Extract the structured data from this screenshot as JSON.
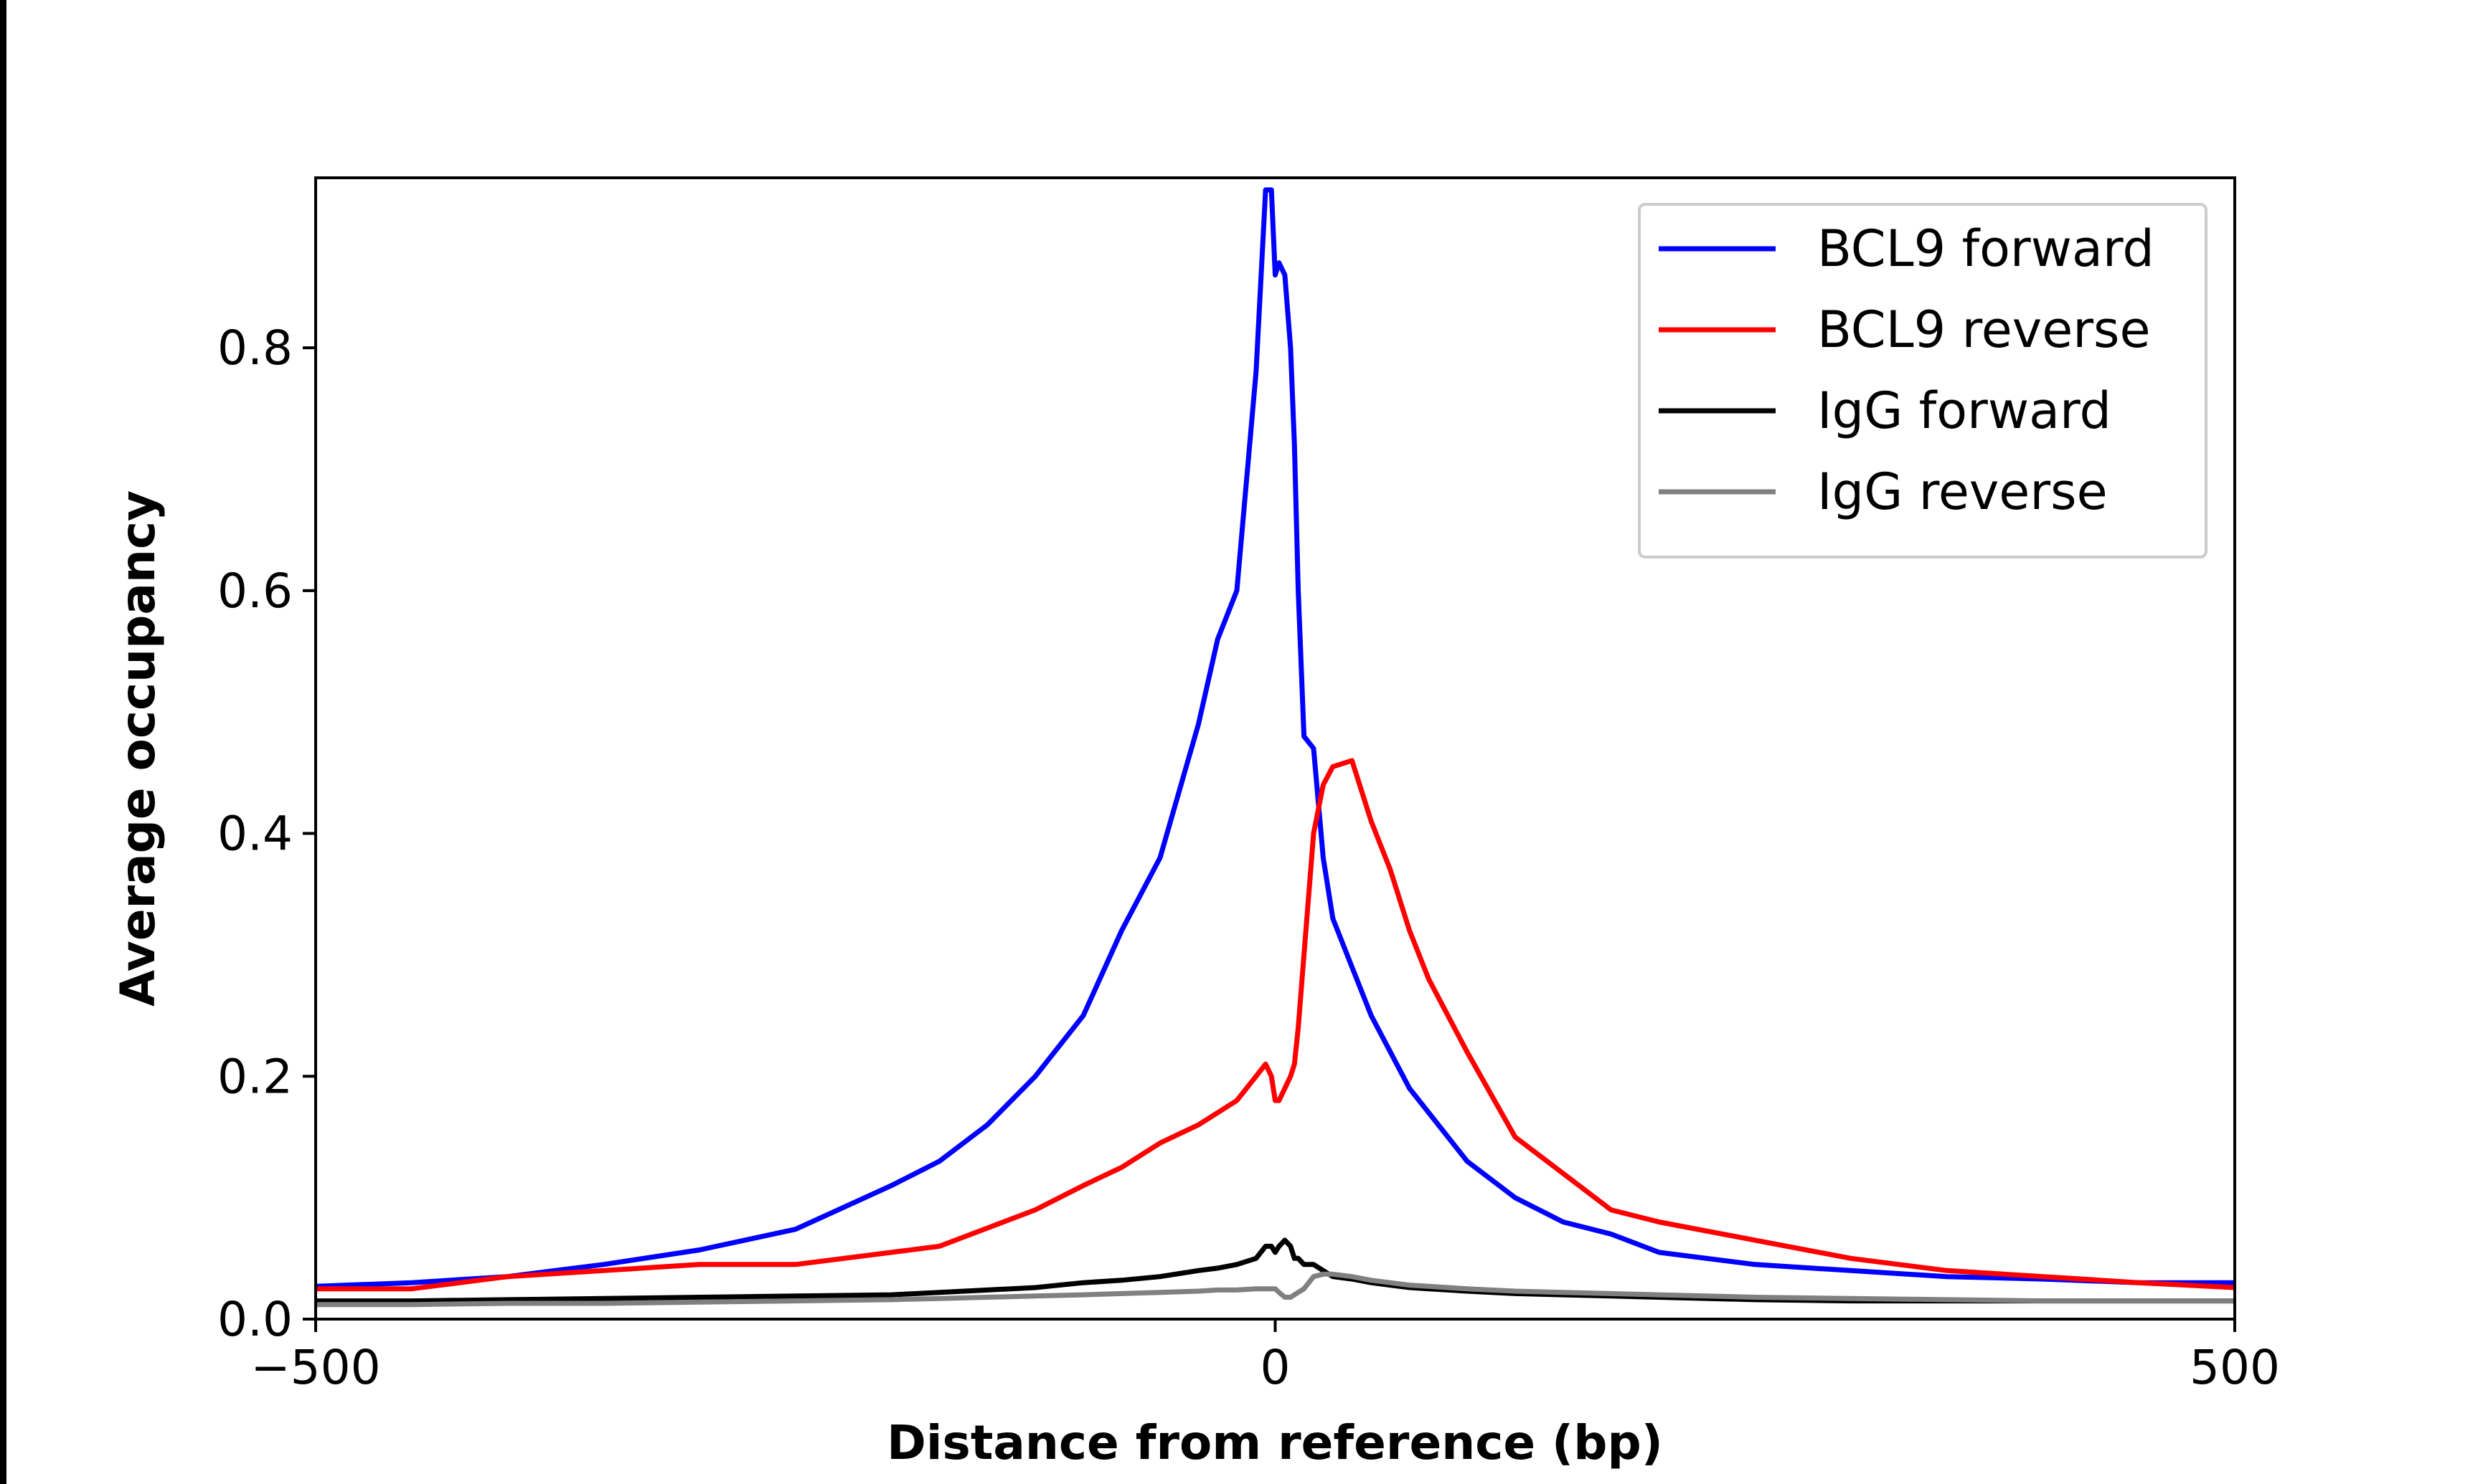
{
  "chart_data": {
    "type": "line",
    "xlabel": "Distance from reference (bp)",
    "ylabel": "Average occupancy",
    "x": [
      -500,
      -450,
      -400,
      -350,
      -300,
      -250,
      -200,
      -175,
      -150,
      -125,
      -100,
      -80,
      -60,
      -40,
      -30,
      -20,
      -10,
      -5,
      -2,
      0,
      2,
      5,
      8,
      10,
      12,
      15,
      20,
      25,
      30,
      40,
      50,
      60,
      70,
      80,
      100,
      125,
      150,
      175,
      200,
      250,
      300,
      350,
      400,
      450,
      500
    ],
    "series": [
      {
        "name": "BCL9 forward",
        "color": "#0000ff",
        "values": [
          0.027,
          0.03,
          0.035,
          0.045,
          0.057,
          0.074,
          0.11,
          0.13,
          0.16,
          0.2,
          0.25,
          0.32,
          0.38,
          0.49,
          0.56,
          0.6,
          0.78,
          0.93,
          0.93,
          0.86,
          0.87,
          0.86,
          0.8,
          0.72,
          0.6,
          0.48,
          0.47,
          0.38,
          0.33,
          0.29,
          0.25,
          0.22,
          0.19,
          0.17,
          0.13,
          0.1,
          0.08,
          0.07,
          0.055,
          0.045,
          0.04,
          0.035,
          0.033,
          0.03,
          0.03
        ]
      },
      {
        "name": "BCL9 reverse",
        "color": "#ff0000",
        "values": [
          0.025,
          0.025,
          0.035,
          0.04,
          0.045,
          0.045,
          0.055,
          0.06,
          0.075,
          0.09,
          0.11,
          0.125,
          0.145,
          0.16,
          0.17,
          0.18,
          0.2,
          0.21,
          0.2,
          0.18,
          0.18,
          0.19,
          0.2,
          0.21,
          0.24,
          0.3,
          0.4,
          0.44,
          0.455,
          0.46,
          0.41,
          0.37,
          0.32,
          0.28,
          0.22,
          0.15,
          0.12,
          0.09,
          0.08,
          0.065,
          0.05,
          0.04,
          0.035,
          0.03,
          0.026
        ]
      },
      {
        "name": "IgG forward",
        "color": "#000000",
        "values": [
          0.015,
          0.015,
          0.016,
          0.017,
          0.018,
          0.019,
          0.02,
          0.022,
          0.024,
          0.026,
          0.03,
          0.032,
          0.035,
          0.04,
          0.042,
          0.045,
          0.05,
          0.06,
          0.06,
          0.055,
          0.06,
          0.065,
          0.06,
          0.05,
          0.05,
          0.045,
          0.045,
          0.04,
          0.035,
          0.033,
          0.03,
          0.028,
          0.026,
          0.025,
          0.023,
          0.021,
          0.02,
          0.019,
          0.018,
          0.016,
          0.015,
          0.015,
          0.015,
          0.015,
          0.015
        ]
      },
      {
        "name": "IgG reverse",
        "color": "#808080",
        "values": [
          0.012,
          0.012,
          0.013,
          0.013,
          0.014,
          0.015,
          0.016,
          0.017,
          0.018,
          0.019,
          0.02,
          0.021,
          0.022,
          0.023,
          0.024,
          0.024,
          0.025,
          0.025,
          0.025,
          0.025,
          0.022,
          0.018,
          0.018,
          0.02,
          0.022,
          0.025,
          0.035,
          0.037,
          0.037,
          0.035,
          0.032,
          0.03,
          0.028,
          0.027,
          0.025,
          0.023,
          0.022,
          0.021,
          0.02,
          0.018,
          0.017,
          0.016,
          0.015,
          0.015,
          0.015
        ]
      }
    ],
    "xlim": [
      -500,
      500
    ],
    "ylim": [
      0,
      0.94
    ],
    "xticks": [
      {
        "value": -500,
        "label": "−500"
      },
      0,
      500
    ],
    "yticks": [
      {
        "value": 0,
        "label": "0.0"
      },
      0.2,
      0.4,
      0.6,
      0.8
    ],
    "legend": "upper right"
  }
}
